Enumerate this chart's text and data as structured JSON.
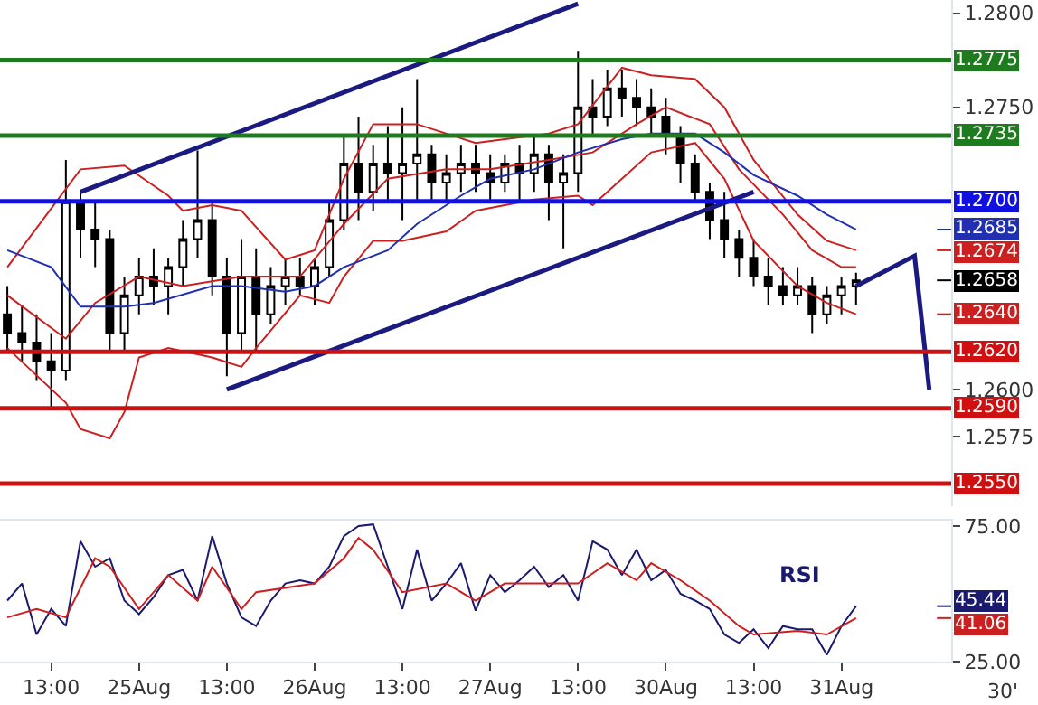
{
  "chart_data": [
    {
      "type": "candlestick",
      "color": "#000000",
      "categories": [
        null,
        null,
        null,
        null,
        null,
        null,
        null,
        null,
        null,
        null,
        null,
        null,
        null,
        null,
        null,
        null,
        null,
        null,
        null,
        null,
        null,
        null,
        null,
        null,
        null,
        null,
        null,
        null,
        null,
        null,
        null,
        null,
        null,
        null,
        null,
        null,
        null,
        null,
        null,
        null,
        null,
        null,
        null,
        null,
        null,
        null,
        null,
        null,
        null,
        null,
        null,
        null,
        null,
        null,
        null,
        null,
        null,
        null,
        null,
        null,
        null,
        null,
        null,
        null,
        null
      ],
      "ohlc": [
        [
          1.264,
          1.2655,
          1.262,
          1.263
        ],
        [
          1.263,
          1.2645,
          1.2615,
          1.2625
        ],
        [
          1.2625,
          1.264,
          1.2605,
          1.2615
        ],
        [
          1.2615,
          1.263,
          1.259,
          1.261
        ],
        [
          1.261,
          1.2722,
          1.2605,
          1.27
        ],
        [
          1.27,
          1.2705,
          1.267,
          1.2685
        ],
        [
          1.2685,
          1.27,
          1.2665,
          1.268
        ],
        [
          1.268,
          1.2685,
          1.262,
          1.263
        ],
        [
          1.263,
          1.266,
          1.262,
          1.265
        ],
        [
          1.265,
          1.267,
          1.264,
          1.266
        ],
        [
          1.266,
          1.2675,
          1.2645,
          1.2655
        ],
        [
          1.2655,
          1.267,
          1.264,
          1.2665
        ],
        [
          1.2665,
          1.269,
          1.2655,
          1.268
        ],
        [
          1.268,
          1.2727,
          1.267,
          1.269
        ],
        [
          1.269,
          1.27,
          1.265,
          1.266
        ],
        [
          1.266,
          1.267,
          1.2607,
          1.263
        ],
        [
          1.263,
          1.268,
          1.262,
          1.266
        ],
        [
          1.266,
          1.2675,
          1.262,
          1.264
        ],
        [
          1.264,
          1.2665,
          1.2635,
          1.2655
        ],
        [
          1.2655,
          1.267,
          1.2645,
          1.266
        ],
        [
          1.266,
          1.267,
          1.265,
          1.2655
        ],
        [
          1.2655,
          1.267,
          1.2645,
          1.2665
        ],
        [
          1.2665,
          1.27,
          1.266,
          1.269
        ],
        [
          1.269,
          1.2735,
          1.2685,
          1.272
        ],
        [
          1.272,
          1.2745,
          1.269,
          1.2705
        ],
        [
          1.2705,
          1.273,
          1.2695,
          1.272
        ],
        [
          1.272,
          1.274,
          1.27,
          1.2715
        ],
        [
          1.2715,
          1.275,
          1.269,
          1.272
        ],
        [
          1.272,
          1.2765,
          1.27,
          1.2725
        ],
        [
          1.2725,
          1.273,
          1.27,
          1.271
        ],
        [
          1.271,
          1.2725,
          1.27,
          1.2715
        ],
        [
          1.2715,
          1.273,
          1.2705,
          1.272
        ],
        [
          1.272,
          1.273,
          1.2705,
          1.2715
        ],
        [
          1.2715,
          1.2725,
          1.27,
          1.271
        ],
        [
          1.271,
          1.2725,
          1.2705,
          1.272
        ],
        [
          1.272,
          1.273,
          1.27,
          1.2715
        ],
        [
          1.2715,
          1.2735,
          1.2705,
          1.2725
        ],
        [
          1.2725,
          1.273,
          1.269,
          1.271
        ],
        [
          1.271,
          1.2725,
          1.2675,
          1.2715
        ],
        [
          1.2715,
          1.278,
          1.2705,
          1.275
        ],
        [
          1.275,
          1.2765,
          1.2735,
          1.2745
        ],
        [
          1.2745,
          1.277,
          1.274,
          1.276
        ],
        [
          1.276,
          1.277,
          1.2745,
          1.2755
        ],
        [
          1.2755,
          1.2765,
          1.274,
          1.275
        ],
        [
          1.275,
          1.276,
          1.2735,
          1.2745
        ],
        [
          1.2745,
          1.2755,
          1.2725,
          1.2735
        ],
        [
          1.2735,
          1.274,
          1.271,
          1.272
        ],
        [
          1.272,
          1.2725,
          1.27,
          1.2705
        ],
        [
          1.2705,
          1.271,
          1.268,
          1.269
        ],
        [
          1.269,
          1.2705,
          1.267,
          1.268
        ],
        [
          1.268,
          1.2685,
          1.266,
          1.267
        ],
        [
          1.267,
          1.268,
          1.2655,
          1.266
        ],
        [
          1.266,
          1.267,
          1.2645,
          1.2655
        ],
        [
          1.2655,
          1.2665,
          1.2645,
          1.265
        ],
        [
          1.265,
          1.2665,
          1.2645,
          1.2655
        ],
        [
          1.2655,
          1.266,
          1.263,
          1.264
        ],
        [
          1.264,
          1.2655,
          1.2635,
          1.265
        ],
        [
          1.265,
          1.266,
          1.264,
          1.2655
        ],
        [
          1.2655,
          1.2662,
          1.2645,
          1.2658
        ],
        null,
        null,
        null,
        null,
        null,
        null
      ],
      "series": [
        {
          "type": "line",
          "color": "#cc2020",
          "values": [
            1.2665,
            null,
            null,
            null,
            null,
            1.2717,
            null,
            null,
            1.2719,
            null,
            null,
            1.2703,
            1.2695,
            null,
            1.2698,
            null,
            1.2695,
            null,
            null,
            1.2669,
            null,
            1.2674,
            null,
            1.2712,
            null,
            1.2741,
            null,
            null,
            1.2741,
            null,
            null,
            null,
            1.2731,
            null,
            1.2733,
            null,
            null,
            1.2736,
            null,
            1.2741,
            null,
            null,
            1.2771,
            null,
            1.2767,
            null,
            null,
            1.2765,
            null,
            1.275,
            null,
            1.2722,
            null,
            null,
            1.2693,
            null,
            1.2679,
            null,
            1.2674,
            null,
            null,
            null,
            null,
            null,
            null
          ]
        },
        {
          "type": "line",
          "color": "#cc2020",
          "values": [
            1.265,
            null,
            null,
            null,
            1.2627,
            null,
            1.2646,
            null,
            null,
            1.266,
            null,
            null,
            1.2655,
            null,
            null,
            null,
            1.266,
            null,
            null,
            null,
            1.266,
            null,
            null,
            1.2688,
            null,
            null,
            1.2712,
            null,
            null,
            null,
            1.2717,
            null,
            null,
            1.2717,
            null,
            null,
            null,
            1.2722,
            null,
            null,
            1.2726,
            null,
            null,
            1.2741,
            null,
            1.275,
            null,
            null,
            1.2741,
            null,
            1.2717,
            null,
            null,
            1.2693,
            null,
            1.2674,
            null,
            1.2665,
            1.2665,
            null,
            null,
            null,
            null,
            null,
            null
          ]
        },
        {
          "type": "line",
          "color": "#cc2020",
          "values": [
            1.2622,
            null,
            null,
            null,
            1.2593,
            1.2579,
            null,
            1.2574,
            1.2588,
            1.2617,
            null,
            1.2622,
            null,
            null,
            1.2617,
            null,
            1.2612,
            1.2622,
            null,
            null,
            1.265,
            null,
            1.2646,
            1.266,
            null,
            1.2679,
            null,
            1.2679,
            null,
            null,
            1.2684,
            null,
            1.2695,
            null,
            null,
            null,
            1.2701,
            null,
            null,
            1.2703,
            1.2698,
            null,
            1.2712,
            null,
            1.2726,
            null,
            null,
            1.2731,
            null,
            1.2712,
            null,
            1.2679,
            null,
            null,
            1.2655,
            null,
            1.2646,
            null,
            1.264,
            null,
            null,
            null,
            null,
            null,
            null
          ]
        },
        {
          "type": "line",
          "color": "#2030b0",
          "values": [
            1.2674,
            null,
            null,
            1.2665,
            null,
            1.2644,
            null,
            null,
            1.2644,
            null,
            1.2646,
            null,
            null,
            null,
            1.2655,
            null,
            1.2655,
            null,
            null,
            1.2652,
            null,
            1.2655,
            null,
            1.2665,
            null,
            null,
            1.2674,
            null,
            1.2688,
            null,
            null,
            1.2703,
            null,
            1.2712,
            null,
            null,
            1.2717,
            null,
            null,
            1.2726,
            null,
            null,
            1.2733,
            null,
            1.2736,
            null,
            null,
            1.2736,
            null,
            1.2726,
            null,
            1.2714,
            null,
            null,
            1.2703,
            null,
            1.2693,
            null,
            1.2685,
            null,
            null,
            null,
            null,
            null,
            null
          ]
        },
        {
          "type": "line",
          "color": "#1a1a80",
          "values": [
            null,
            null,
            null,
            null,
            null,
            1.2705,
            null,
            null,
            null,
            null,
            null,
            null,
            null,
            null,
            null,
            null,
            null,
            null,
            null,
            null,
            null,
            null,
            null,
            null,
            null,
            null,
            null,
            null,
            null,
            null,
            null,
            null,
            null,
            null,
            null,
            null,
            null,
            null,
            null,
            1.2805,
            null,
            null,
            null,
            null,
            null,
            null,
            null,
            null,
            null,
            null,
            null,
            null,
            null,
            null,
            null,
            null,
            null,
            null,
            null,
            null,
            null,
            null,
            null,
            null,
            null
          ]
        },
        {
          "type": "line",
          "color": "#1a1a80",
          "values": [
            null,
            null,
            null,
            null,
            null,
            null,
            null,
            null,
            null,
            null,
            null,
            null,
            null,
            null,
            null,
            1.26,
            null,
            null,
            null,
            null,
            null,
            null,
            null,
            null,
            null,
            null,
            null,
            null,
            null,
            null,
            null,
            null,
            null,
            null,
            null,
            null,
            null,
            null,
            null,
            null,
            null,
            null,
            null,
            null,
            null,
            null,
            null,
            null,
            null,
            null,
            null,
            1.2705,
            null,
            null,
            null,
            null,
            null,
            null,
            null,
            null,
            null,
            null,
            null,
            null,
            null
          ]
        },
        {
          "type": "line",
          "color": "#1a1a80",
          "values": [
            null,
            null,
            null,
            null,
            null,
            null,
            null,
            null,
            null,
            null,
            null,
            null,
            null,
            null,
            null,
            null,
            null,
            null,
            null,
            null,
            null,
            null,
            null,
            null,
            null,
            null,
            null,
            null,
            null,
            null,
            null,
            null,
            null,
            null,
            null,
            null,
            null,
            null,
            null,
            null,
            null,
            null,
            null,
            null,
            null,
            null,
            null,
            null,
            null,
            null,
            null,
            null,
            null,
            null,
            null,
            null,
            null,
            null,
            1.2655,
            null,
            null,
            null,
            1.2671,
            1.26,
            null
          ]
        }
      ],
      "ref_lines": [
        {
          "axis": "y",
          "value": 1.2775,
          "label": "1.2775",
          "color": "#1e7b1e"
        },
        {
          "axis": "y",
          "value": 1.2735,
          "label": "1.2735",
          "color": "#1e7b1e"
        },
        {
          "axis": "y",
          "value": 1.27,
          "label": "1.2700",
          "color": "#1010e0"
        },
        {
          "axis": "y",
          "value": 1.262,
          "label": "1.2620",
          "color": "#d01010"
        },
        {
          "axis": "y",
          "value": 1.259,
          "label": "1.2590",
          "color": "#d01010"
        },
        {
          "axis": "y",
          "value": 1.255,
          "label": "1.2550",
          "color": "#d01010"
        }
      ],
      "annotations": [
        {
          "text": "1.2685",
          "y": 1.2685
        },
        {
          "text": "1.2674",
          "y": 1.2674
        },
        {
          "text": "1.2658",
          "y": 1.2658
        },
        {
          "text": "1.2640",
          "y": 1.264
        }
      ],
      "ylim": [
        1.2538,
        1.2807
      ],
      "yticks": [
        1.2575,
        {
          "value": 1.26,
          "label": "1.2600"
        },
        {
          "value": 1.275,
          "label": "1.2750"
        },
        {
          "value": 1.28,
          "label": "1.2800"
        }
      ],
      "tick_labels": "y",
      "grid": false,
      "legend": false
    },
    {
      "type": "line",
      "xlabel": "30'",
      "categories": [
        null,
        null,
        null,
        "13:00",
        null,
        null,
        null,
        null,
        null,
        "25Aug",
        null,
        null,
        null,
        null,
        null,
        "13:00",
        null,
        null,
        null,
        null,
        null,
        "26Aug",
        null,
        null,
        null,
        null,
        null,
        "13:00",
        null,
        null,
        null,
        null,
        null,
        "27Aug",
        null,
        null,
        null,
        null,
        null,
        "13:00",
        null,
        null,
        null,
        null,
        null,
        "30Aug",
        null,
        null,
        null,
        null,
        null,
        "13:00",
        null,
        null,
        null,
        null,
        null,
        "31Aug",
        null,
        null,
        null,
        null,
        null,
        null,
        null
      ],
      "series": [
        {
          "name": "RSI",
          "color": "#1a1a6e",
          "values": [
            47.5,
            53.8,
            35,
            44.4,
            38.1,
            69.4,
            60,
            63.1,
            47.5,
            42.5,
            48.8,
            56.9,
            58.8,
            47.5,
            71.3,
            53.8,
            41.3,
            38.1,
            47.5,
            53.8,
            55,
            53.8,
            60,
            71.3,
            75,
            75.6,
            60,
            44.4,
            66.3,
            47.5,
            53.8,
            61.3,
            43.8,
            56.9,
            50.6,
            55,
            60,
            52.5,
            56.9,
            47.5,
            69.4,
            66.3,
            56.9,
            66.3,
            55,
            58.8,
            50,
            47.5,
            44.4,
            35,
            31.9,
            36.9,
            30,
            38.1,
            36.9,
            36.9,
            27.5,
            38.1,
            45.44,
            null,
            null,
            null,
            null,
            null,
            null
          ]
        },
        {
          "color": "#cc2020",
          "values": [
            41.3,
            null,
            44.4,
            null,
            41.3,
            null,
            63.1,
            60,
            null,
            44.4,
            null,
            56.9,
            null,
            47.5,
            60,
            null,
            44.4,
            50.6,
            null,
            null,
            null,
            53.8,
            null,
            63.1,
            70.6,
            66.3,
            null,
            50.6,
            null,
            null,
            53.8,
            null,
            47.5,
            null,
            53.8,
            null,
            null,
            53.8,
            null,
            53.8,
            null,
            61.3,
            null,
            55,
            61.3,
            null,
            55,
            null,
            47.5,
            null,
            38.1,
            35,
            null,
            null,
            36.3,
            null,
            35,
            null,
            41.06,
            null,
            null,
            null,
            null,
            null,
            null
          ]
        }
      ],
      "annotations": [
        "45.44",
        "41.06"
      ],
      "ylim": [
        25,
        77
      ],
      "yticks": [
        {
          "value": 25,
          "label": "25.00"
        },
        {
          "value": 75,
          "label": "75.00"
        }
      ],
      "grid": false,
      "legend": false
    }
  ]
}
